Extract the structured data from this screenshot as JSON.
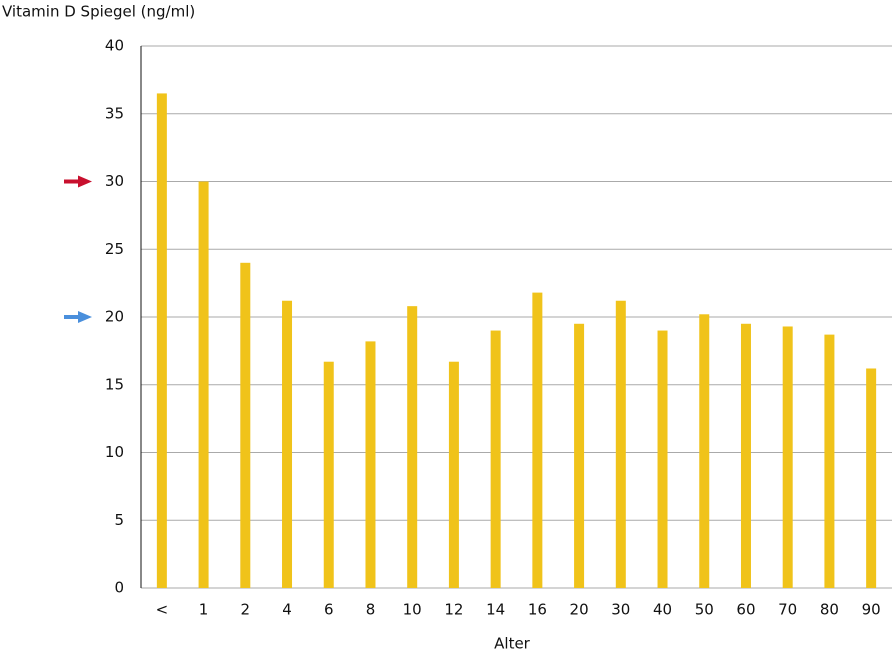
{
  "chart_data": {
    "type": "bar",
    "title": "Vitamin D Spiegel (ng/ml)",
    "x_label": "Alter",
    "categories": [
      "<",
      "1",
      "2",
      "4",
      "6",
      "8",
      "10",
      "12",
      "14",
      "16",
      "20",
      "30",
      "40",
      "50",
      "60",
      "70",
      "80",
      "90"
    ],
    "values": [
      36.5,
      30,
      24,
      21.2,
      16.7,
      18.2,
      20.8,
      16.7,
      19,
      21.8,
      19.5,
      21.2,
      19,
      20.2,
      19.5,
      19.3,
      18.7,
      16.2
    ],
    "color": "#f0c31a",
    "ylim": [
      0,
      40
    ],
    "yticks": [
      0,
      5,
      10,
      15,
      20,
      25,
      30,
      35,
      40
    ],
    "grid": true,
    "reference_markers": [
      {
        "value": 30,
        "color": "#c8102e"
      },
      {
        "value": 20,
        "color": "#4a8fdc"
      }
    ]
  }
}
